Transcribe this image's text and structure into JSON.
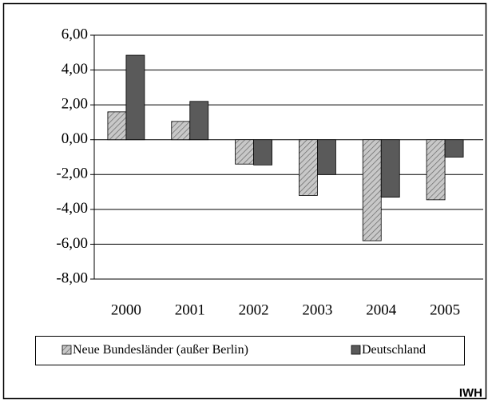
{
  "chart_data": {
    "type": "bar",
    "categories": [
      "2000",
      "2001",
      "2002",
      "2003",
      "2004",
      "2005"
    ],
    "series": [
      {
        "name": "Neue Bundesländer (außer Berlin)",
        "color": "#c8c8c8",
        "hatch": true,
        "values": [
          1.6,
          1.05,
          -1.4,
          -3.2,
          -5.8,
          -3.45
        ]
      },
      {
        "name": "Deutschland",
        "color": "#5a5a5a",
        "hatch": false,
        "values": [
          4.85,
          2.2,
          -1.45,
          -2.0,
          -3.3,
          -1.0
        ]
      }
    ],
    "ylim": [
      -8,
      6
    ],
    "yticks": [
      {
        "value": -8,
        "label": "-8,00"
      },
      {
        "value": -6,
        "label": "-6,00"
      },
      {
        "value": -4,
        "label": "-4,00"
      },
      {
        "value": -2,
        "label": "-2,00"
      },
      {
        "value": 0,
        "label": "0,00"
      },
      {
        "value": 2,
        "label": "2,00"
      },
      {
        "value": 4,
        "label": "4,00"
      },
      {
        "value": 6,
        "label": "6,00"
      }
    ],
    "grid": true,
    "source": "IWH"
  }
}
